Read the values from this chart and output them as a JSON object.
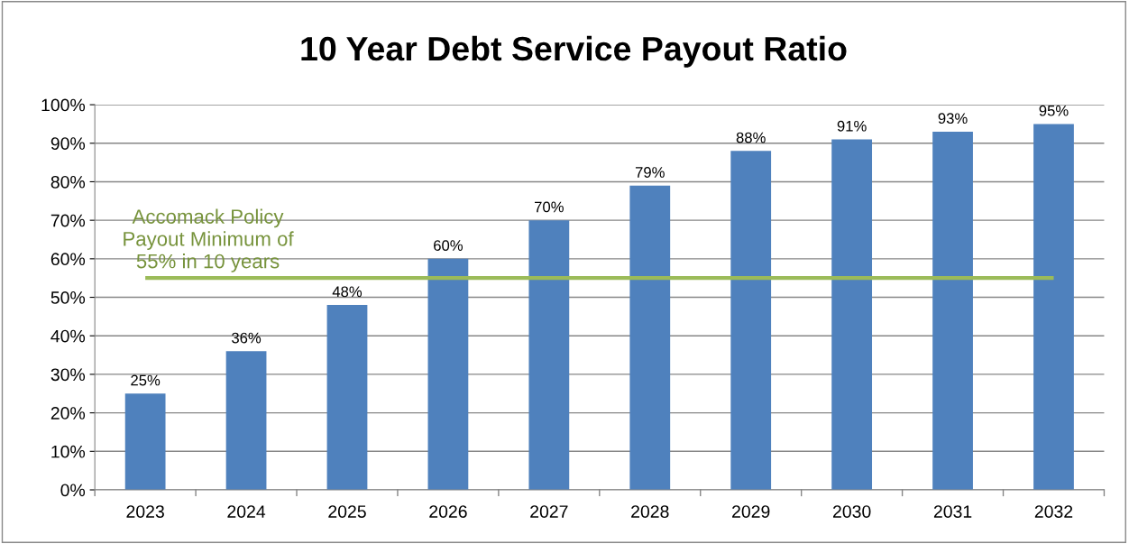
{
  "chart_data": {
    "type": "bar",
    "title": "10 Year Debt Service Payout Ratio",
    "categories": [
      "2023",
      "2024",
      "2025",
      "2026",
      "2027",
      "2028",
      "2029",
      "2030",
      "2031",
      "2032"
    ],
    "values": [
      25,
      36,
      48,
      60,
      70,
      79,
      88,
      91,
      93,
      95
    ],
    "color": "#4f81bd",
    "ylim": [
      0,
      100
    ],
    "yticks": [
      {
        "value": 0,
        "label": "0%"
      },
      {
        "value": 10,
        "label": "10%"
      },
      {
        "value": 20,
        "label": "20%"
      },
      {
        "value": 30,
        "label": "30%"
      },
      {
        "value": 40,
        "label": "40%"
      },
      {
        "value": 50,
        "label": "50%"
      },
      {
        "value": 60,
        "label": "60%"
      },
      {
        "value": 70,
        "label": "70%"
      },
      {
        "value": 80,
        "label": "80%"
      },
      {
        "value": 90,
        "label": "90%"
      },
      {
        "value": 100,
        "label": "100%"
      }
    ],
    "value_labels": [
      "25%",
      "36%",
      "48%",
      "60%",
      "70%",
      "79%",
      "88%",
      "91%",
      "93%",
      "95%"
    ],
    "ref_lines": [
      {
        "axis": "y",
        "value": 55,
        "label": "Accomack Policy\nPayout Minimum of\n55% in 10 years",
        "color": "#9bbb59"
      }
    ],
    "grid": "y"
  }
}
